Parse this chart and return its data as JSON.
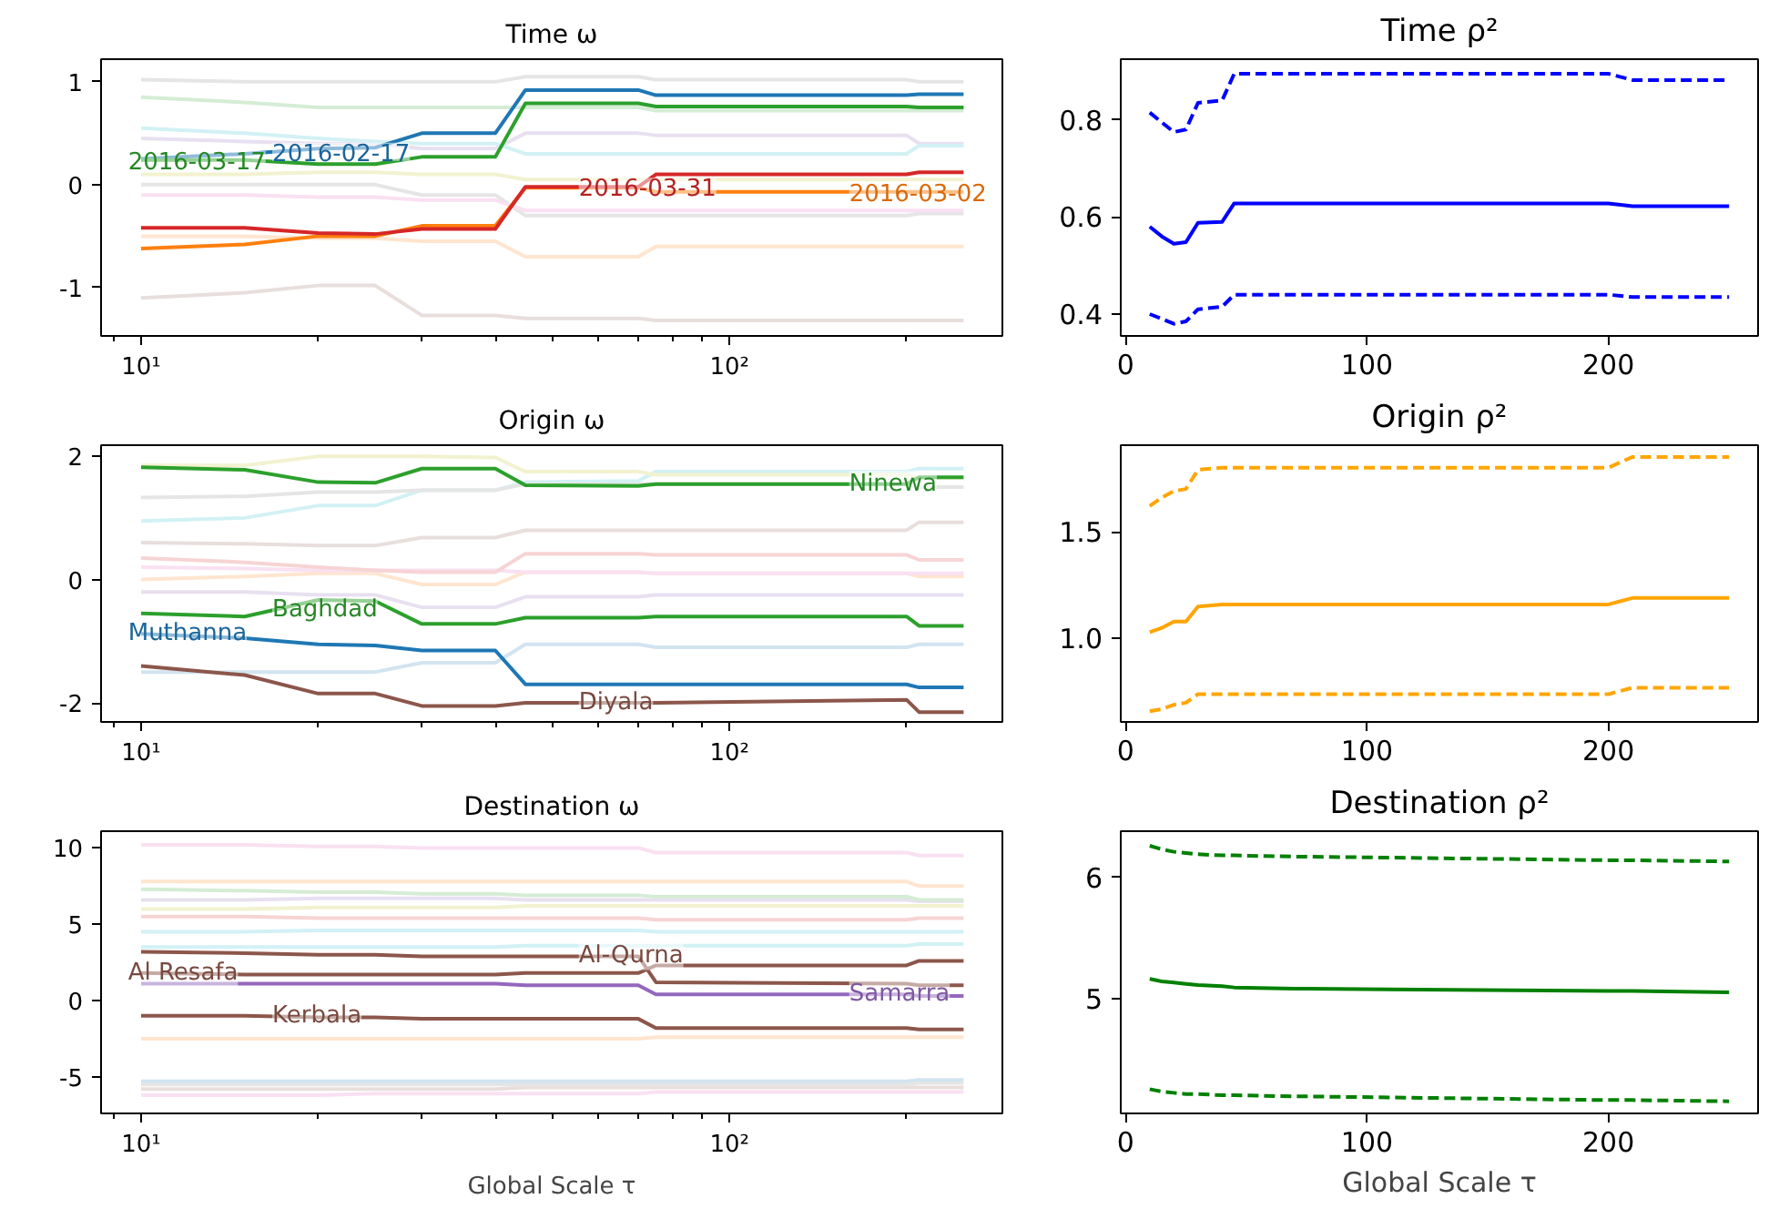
{
  "chart_data": [
    {
      "type": "line",
      "title": "Time ω",
      "log": "x",
      "xlim": [
        8.55,
        291
      ],
      "ylim": [
        -1.47,
        1.22
      ],
      "xticks": [
        {
          "value": 9,
          "label": null
        },
        {
          "value": 10,
          "label": "10¹"
        },
        {
          "value": 20,
          "label": null
        },
        {
          "value": 30,
          "label": null
        },
        {
          "value": 40,
          "label": null
        },
        {
          "value": 50,
          "label": null
        },
        {
          "value": 60,
          "label": null
        },
        {
          "value": 70,
          "label": null
        },
        {
          "value": 80,
          "label": null
        },
        {
          "value": 90,
          "label": null
        },
        {
          "value": 100,
          "label": "10²"
        },
        {
          "value": 200,
          "label": null
        }
      ],
      "yticks": [
        -1,
        0,
        1
      ],
      "x": [
        10,
        15,
        20,
        25,
        30,
        40,
        45,
        70,
        75,
        200,
        210,
        250
      ],
      "series": [
        {
          "name": "2016-03-17",
          "color": "#2ca02c",
          "values": [
            0.24,
            0.24,
            0.2,
            0.2,
            0.27,
            0.27,
            0.79,
            0.79,
            0.76,
            0.76,
            0.75,
            0.75
          ]
        },
        {
          "name": "2016-02-17",
          "color": "#1f77b4",
          "values": [
            0.25,
            0.3,
            0.35,
            0.36,
            0.5,
            0.5,
            0.92,
            0.92,
            0.87,
            0.87,
            0.88,
            0.88
          ]
        },
        {
          "name": "2016-03-31",
          "color": "#d62728",
          "values": [
            -0.42,
            -0.42,
            -0.47,
            -0.48,
            -0.43,
            -0.43,
            -0.02,
            -0.02,
            0.1,
            0.1,
            0.12,
            0.12
          ]
        },
        {
          "name": "2016-03-02",
          "color": "#ff7f0e",
          "values": [
            -0.62,
            -0.58,
            -0.5,
            -0.5,
            -0.4,
            -0.4,
            -0.03,
            -0.03,
            -0.07,
            -0.07,
            -0.07,
            -0.07
          ]
        },
        {
          "color": "#e5e5e5",
          "values": [
            1.02,
            1.0,
            1.0,
            1.0,
            1.0,
            1.0,
            1.05,
            1.05,
            1.02,
            1.02,
            1.0,
            1.0
          ]
        },
        {
          "color": "#e8dedc",
          "values": [
            -1.1,
            -1.05,
            -0.98,
            -0.98,
            -1.27,
            -1.27,
            -1.3,
            -1.3,
            -1.32,
            -1.32,
            -1.32,
            -1.32
          ]
        },
        {
          "color": "#d2f1f5",
          "values": [
            0.55,
            0.5,
            0.45,
            0.42,
            0.4,
            0.4,
            0.3,
            0.3,
            0.3,
            0.3,
            0.38,
            0.38
          ]
        },
        {
          "color": "#e8e0f0",
          "values": [
            0.45,
            0.42,
            0.4,
            0.4,
            0.35,
            0.35,
            0.5,
            0.5,
            0.48,
            0.48,
            0.4,
            0.4
          ]
        },
        {
          "color": "#f9e0f2",
          "values": [
            -0.1,
            -0.1,
            -0.12,
            -0.12,
            -0.15,
            -0.15,
            -0.25,
            -0.25,
            -0.25,
            -0.25,
            -0.25,
            -0.25
          ]
        },
        {
          "color": "#d5ecd5",
          "values": [
            0.85,
            0.8,
            0.75,
            0.75,
            0.75,
            0.75,
            0.75,
            0.75,
            0.72,
            0.72,
            0.72,
            0.72
          ]
        },
        {
          "color": "#ffe5cf",
          "values": [
            -0.5,
            -0.5,
            -0.52,
            -0.52,
            -0.55,
            -0.55,
            -0.7,
            -0.7,
            -0.6,
            -0.6,
            -0.6,
            -0.6
          ]
        },
        {
          "color": "#e5e5e5",
          "values": [
            0.0,
            0.0,
            0.0,
            0.0,
            -0.1,
            -0.1,
            -0.3,
            -0.3,
            -0.3,
            -0.3,
            -0.28,
            -0.28
          ]
        },
        {
          "color": "#f2f2d1",
          "values": [
            0.1,
            0.1,
            0.12,
            0.12,
            0.1,
            0.1,
            0.05,
            0.05,
            0.05,
            0.05,
            0.05,
            0.05
          ]
        }
      ]
    },
    {
      "type": "line",
      "title": "Time ρ²",
      "xlim": [
        -2,
        262
      ],
      "ylim": [
        0.355,
        0.925
      ],
      "xticks": [
        0,
        100,
        200
      ],
      "yticks": [
        0.4,
        0.6,
        0.8
      ],
      "x": [
        10,
        15,
        20,
        25,
        30,
        40,
        45,
        70,
        75,
        200,
        210,
        250
      ],
      "series": [
        {
          "color": "#0000ff",
          "values": [
            0.58,
            0.56,
            0.545,
            0.548,
            0.588,
            0.59,
            0.628,
            0.628,
            0.628,
            0.628,
            0.622,
            0.622
          ]
        },
        {
          "color": "#0000ff",
          "line_style": "dashed",
          "values": [
            0.815,
            0.795,
            0.775,
            0.78,
            0.835,
            0.84,
            0.895,
            0.895,
            0.895,
            0.895,
            0.882,
            0.882
          ]
        },
        {
          "color": "#0000ff",
          "line_style": "dashed",
          "values": [
            0.4,
            0.39,
            0.38,
            0.385,
            0.41,
            0.415,
            0.44,
            0.44,
            0.44,
            0.44,
            0.435,
            0.435
          ]
        }
      ]
    },
    {
      "type": "line",
      "title": "Origin ω",
      "log": "x",
      "xlim": [
        8.55,
        291
      ],
      "ylim": [
        -2.31,
        2.18
      ],
      "xticks": [
        {
          "value": 9,
          "label": null
        },
        {
          "value": 10,
          "label": "10¹"
        },
        {
          "value": 20,
          "label": null
        },
        {
          "value": 30,
          "label": null
        },
        {
          "value": 40,
          "label": null
        },
        {
          "value": 50,
          "label": null
        },
        {
          "value": 60,
          "label": null
        },
        {
          "value": 70,
          "label": null
        },
        {
          "value": 80,
          "label": null
        },
        {
          "value": 90,
          "label": null
        },
        {
          "value": 100,
          "label": "10²"
        },
        {
          "value": 200,
          "label": null
        }
      ],
      "yticks": [
        -2,
        0,
        2
      ],
      "x": [
        10,
        15,
        20,
        25,
        30,
        40,
        45,
        70,
        75,
        200,
        210,
        250
      ],
      "series": [
        {
          "name": "Muthanna",
          "color": "#1f77b4",
          "values": [
            -0.88,
            -0.95,
            -1.05,
            -1.07,
            -1.15,
            -1.15,
            -1.7,
            -1.7,
            -1.7,
            -1.7,
            -1.75,
            -1.75
          ]
        },
        {
          "name": "Baghdad",
          "color": "#2ca02c",
          "values": [
            -0.55,
            -0.6,
            -0.33,
            -0.35,
            -0.72,
            -0.72,
            -0.62,
            -0.62,
            -0.6,
            -0.6,
            -0.75,
            -0.75
          ]
        },
        {
          "name": "Diyala",
          "color": "#8c564b",
          "values": [
            -1.4,
            -1.55,
            -1.85,
            -1.85,
            -2.05,
            -2.05,
            -2.0,
            -2.0,
            -2.0,
            -1.95,
            -2.15,
            -2.15
          ]
        },
        {
          "name": "Ninewa",
          "color": "#2ca02c",
          "values": [
            1.82,
            1.78,
            1.58,
            1.57,
            1.8,
            1.8,
            1.53,
            1.52,
            1.55,
            1.55,
            1.66,
            1.66
          ]
        },
        {
          "color": "#f2f2d1",
          "values": [
            1.85,
            1.85,
            2.0,
            2.0,
            2.0,
            1.98,
            1.75,
            1.75,
            1.7,
            1.7,
            1.65,
            1.65
          ]
        },
        {
          "color": "#e5e5e5",
          "values": [
            1.33,
            1.35,
            1.42,
            1.42,
            1.45,
            1.45,
            1.55,
            1.55,
            1.55,
            1.55,
            1.5,
            1.5
          ]
        },
        {
          "color": "#d2f1f5",
          "values": [
            0.95,
            1.0,
            1.2,
            1.2,
            1.45,
            1.45,
            1.58,
            1.6,
            1.75,
            1.75,
            1.8,
            1.8
          ]
        },
        {
          "color": "#e8dedc",
          "values": [
            0.6,
            0.58,
            0.55,
            0.55,
            0.68,
            0.68,
            0.8,
            0.8,
            0.8,
            0.8,
            0.93,
            0.93
          ]
        },
        {
          "color": "#f7d4d4",
          "values": [
            0.35,
            0.28,
            0.2,
            0.15,
            0.12,
            0.12,
            0.42,
            0.42,
            0.4,
            0.4,
            0.32,
            0.32
          ]
        },
        {
          "color": "#f9e0f2",
          "values": [
            0.2,
            0.18,
            0.15,
            0.15,
            0.15,
            0.15,
            0.12,
            0.12,
            0.1,
            0.1,
            0.1,
            0.1
          ]
        },
        {
          "color": "#e8e0f0",
          "values": [
            -0.2,
            -0.2,
            -0.25,
            -0.25,
            -0.45,
            -0.45,
            -0.28,
            -0.28,
            -0.25,
            -0.25,
            -0.25,
            -0.25
          ]
        },
        {
          "color": "#d2e4f0",
          "values": [
            -1.5,
            -1.5,
            -1.5,
            -1.5,
            -1.35,
            -1.35,
            -1.05,
            -1.05,
            -1.1,
            -1.1,
            -1.05,
            -1.05
          ]
        },
        {
          "color": "#ffe5cf",
          "values": [
            0.0,
            0.05,
            0.1,
            0.1,
            -0.08,
            -0.08,
            0.12,
            0.12,
            0.1,
            0.1,
            0.05,
            0.05
          ]
        }
      ]
    },
    {
      "type": "line",
      "title": "Origin ρ²",
      "xlim": [
        -2,
        262
      ],
      "ylim": [
        0.61,
        1.905
      ],
      "xticks": [
        0,
        100,
        200
      ],
      "yticks": [
        {
          "value": 1,
          "label": "1.0"
        },
        1.5
      ],
      "x": [
        10,
        15,
        20,
        25,
        30,
        40,
        45,
        70,
        75,
        200,
        210,
        250
      ],
      "series": [
        {
          "color": "#ffa500",
          "values": [
            1.03,
            1.05,
            1.08,
            1.08,
            1.15,
            1.16,
            1.16,
            1.16,
            1.16,
            1.16,
            1.19,
            1.19
          ]
        },
        {
          "color": "#ffa500",
          "line_style": "dashed",
          "values": [
            1.62,
            1.66,
            1.69,
            1.7,
            1.79,
            1.8,
            1.8,
            1.8,
            1.8,
            1.8,
            1.85,
            1.85
          ]
        },
        {
          "color": "#ffa500",
          "line_style": "dashed",
          "values": [
            0.66,
            0.67,
            0.69,
            0.7,
            0.74,
            0.74,
            0.74,
            0.74,
            0.74,
            0.74,
            0.77,
            0.77
          ]
        }
      ]
    },
    {
      "type": "line",
      "title": "Destination ω",
      "xlabel": "Global Scale τ",
      "log": "x",
      "xlim": [
        8.55,
        291
      ],
      "ylim": [
        -7.4,
        11.1
      ],
      "xticks": [
        {
          "value": 9,
          "label": null
        },
        {
          "value": 10,
          "label": "10¹"
        },
        {
          "value": 20,
          "label": null
        },
        {
          "value": 30,
          "label": null
        },
        {
          "value": 40,
          "label": null
        },
        {
          "value": 50,
          "label": null
        },
        {
          "value": 60,
          "label": null
        },
        {
          "value": 70,
          "label": null
        },
        {
          "value": 80,
          "label": null
        },
        {
          "value": 90,
          "label": null
        },
        {
          "value": 100,
          "label": "10²"
        },
        {
          "value": 200,
          "label": null
        }
      ],
      "yticks": [
        -5,
        0,
        5,
        10
      ],
      "x": [
        10,
        15,
        20,
        25,
        30,
        40,
        45,
        70,
        75,
        200,
        210,
        250
      ],
      "series": [
        {
          "name": "Al Resafa",
          "color": "#8c564b",
          "values": [
            1.8,
            1.7,
            1.7,
            1.7,
            1.7,
            1.7,
            1.8,
            1.8,
            2.3,
            2.3,
            2.6,
            2.6
          ]
        },
        {
          "name": "Kerbala",
          "color": "#8c564b",
          "values": [
            -1.0,
            -1.0,
            -1.1,
            -1.1,
            -1.2,
            -1.2,
            -1.2,
            -1.2,
            -1.8,
            -1.8,
            -1.9,
            -1.9
          ]
        },
        {
          "name": "Al-Qurna",
          "color": "#8c564b",
          "values": [
            3.2,
            3.1,
            3.0,
            3.0,
            2.9,
            2.9,
            2.9,
            2.9,
            1.2,
            1.1,
            1.0,
            1.0
          ]
        },
        {
          "name": "Samarra",
          "color": "#9467bd",
          "values": [
            1.1,
            1.1,
            1.1,
            1.1,
            1.1,
            1.1,
            1.0,
            1.0,
            0.4,
            0.4,
            0.3,
            0.3
          ]
        },
        {
          "color": "#f9e0f2",
          "values": [
            10.2,
            10.2,
            10.1,
            10.1,
            10.0,
            10.0,
            10.0,
            10.0,
            9.7,
            9.7,
            9.5,
            9.5
          ]
        },
        {
          "color": "#ffe5cf",
          "values": [
            7.8,
            7.8,
            7.8,
            7.8,
            7.8,
            7.8,
            7.8,
            7.8,
            7.8,
            7.8,
            7.5,
            7.5
          ]
        },
        {
          "color": "#d5ecd5",
          "values": [
            7.3,
            7.2,
            7.1,
            7.1,
            7.0,
            7.0,
            6.9,
            6.9,
            6.8,
            6.8,
            6.6,
            6.6
          ]
        },
        {
          "color": "#e8e0f0",
          "values": [
            6.6,
            6.6,
            6.7,
            6.7,
            6.7,
            6.7,
            6.6,
            6.6,
            6.6,
            6.6,
            6.5,
            6.5
          ]
        },
        {
          "color": "#f2f2d1",
          "values": [
            6.0,
            6.0,
            6.1,
            6.1,
            6.1,
            6.1,
            6.2,
            6.2,
            6.2,
            6.2,
            6.2,
            6.2
          ]
        },
        {
          "color": "#f7d4d4",
          "values": [
            5.5,
            5.5,
            5.4,
            5.4,
            5.4,
            5.4,
            5.4,
            5.4,
            5.3,
            5.3,
            5.4,
            5.4
          ]
        },
        {
          "color": "#d2f1f5",
          "values": [
            4.5,
            4.5,
            4.6,
            4.6,
            4.6,
            4.6,
            4.6,
            4.6,
            4.5,
            4.5,
            4.5,
            4.5
          ]
        },
        {
          "color": "#d2f1f5",
          "values": [
            3.5,
            3.5,
            3.5,
            3.5,
            3.5,
            3.5,
            3.6,
            3.6,
            3.6,
            3.6,
            3.7,
            3.7
          ]
        },
        {
          "color": "#ffe5cf",
          "values": [
            -2.5,
            -2.5,
            -2.5,
            -2.5,
            -2.5,
            -2.5,
            -2.5,
            -2.5,
            -2.4,
            -2.4,
            -2.4,
            -2.4
          ]
        },
        {
          "color": "#d2e4f0",
          "values": [
            -5.3,
            -5.3,
            -5.3,
            -5.3,
            -5.3,
            -5.3,
            -5.3,
            -5.3,
            -5.3,
            -5.3,
            -5.2,
            -5.2
          ]
        },
        {
          "color": "#e5e5e5",
          "values": [
            -5.5,
            -5.5,
            -5.5,
            -5.5,
            -5.5,
            -5.5,
            -5.5,
            -5.5,
            -5.5,
            -5.5,
            -5.4,
            -5.4
          ]
        },
        {
          "color": "#e8dedc",
          "values": [
            -5.8,
            -5.8,
            -5.8,
            -5.8,
            -5.8,
            -5.8,
            -5.7,
            -5.7,
            -5.7,
            -5.7,
            -5.7,
            -5.7
          ]
        },
        {
          "color": "#f9e0f2",
          "values": [
            -6.2,
            -6.2,
            -6.2,
            -6.1,
            -6.1,
            -6.1,
            -6.1,
            -6.1,
            -6.0,
            -6.0,
            -6.0,
            -6.0
          ]
        }
      ]
    },
    {
      "type": "line",
      "title": "Destination ρ²",
      "xlabel": "Global Scale τ",
      "xlim": [
        -2,
        262
      ],
      "ylim": [
        4.05,
        6.38
      ],
      "xticks": [
        0,
        100,
        200
      ],
      "yticks": [
        5,
        6
      ],
      "x": [
        10,
        15,
        20,
        25,
        30,
        40,
        45,
        70,
        75,
        200,
        210,
        250
      ],
      "series": [
        {
          "color": "#008000",
          "values": [
            5.16,
            5.14,
            5.13,
            5.12,
            5.11,
            5.1,
            5.09,
            5.08,
            5.08,
            5.06,
            5.06,
            5.05
          ]
        },
        {
          "color": "#008000",
          "line_style": "dashed",
          "values": [
            6.26,
            6.23,
            6.21,
            6.2,
            6.19,
            6.18,
            6.18,
            6.17,
            6.17,
            6.14,
            6.14,
            6.13
          ]
        },
        {
          "color": "#008000",
          "line_style": "dashed",
          "values": [
            4.25,
            4.23,
            4.22,
            4.21,
            4.21,
            4.2,
            4.2,
            4.19,
            4.19,
            4.16,
            4.16,
            4.15
          ]
        }
      ]
    }
  ]
}
